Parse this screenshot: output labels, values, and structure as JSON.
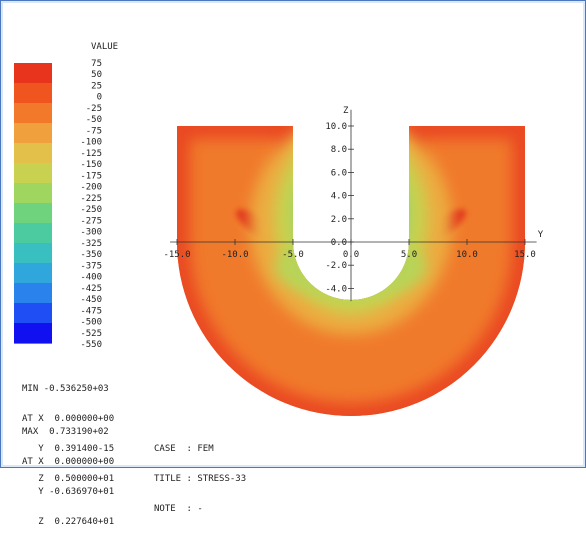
{
  "chart_data": {
    "type": "heatmap",
    "title": "",
    "colorbar": {
      "title": "VALUE",
      "ticks": [
        75,
        50,
        25,
        0,
        -25,
        -50,
        -75,
        -100,
        -125,
        -150,
        -175,
        -200,
        -225,
        -250,
        -275,
        -300,
        -325,
        -350,
        -375,
        -400,
        -425,
        -450,
        -475,
        -500,
        -525,
        -550
      ],
      "colors_top_to_bottom": [
        "#e8341c",
        "#f0551f",
        "#f2782a",
        "#f0a03c",
        "#e2c04a",
        "#c8d250",
        "#9ed660",
        "#6fd27c",
        "#4ccba0",
        "#3abfc0",
        "#2fa6dc",
        "#2a82ec",
        "#1f4ef4",
        "#1010f0"
      ]
    },
    "y_axis": {
      "label": "Y",
      "ticks": [
        "-15.0",
        "-10.0",
        "-5.0",
        "0.0",
        "5.0",
        "10.0",
        "15.0"
      ],
      "range": [
        -15,
        15
      ]
    },
    "z_axis": {
      "label": "Z",
      "ticks": [
        "10.0",
        "8.0",
        "6.0",
        "4.0",
        "2.0",
        "0.0",
        "-2.0",
        "-4.0"
      ],
      "range": [
        -5,
        10
      ]
    },
    "domain": {
      "inner_radius": 5,
      "outer_radius": 15,
      "center": [
        0,
        0
      ]
    },
    "min": {
      "label": "MIN",
      "value": "-0.536250+03",
      "at_label": "AT X",
      "x": "0.000000+00",
      "y": "0.391400-15",
      "z": "0.500000+01"
    },
    "max": {
      "label": "MAX",
      "value": "0.733190+02",
      "at_label": "AT X",
      "x": "0.000000+00",
      "y": "-0.636970+01",
      "z": "0.227640+01"
    },
    "case": {
      "case_label": "CASE",
      "case_value": "FEM",
      "title_label": "TITLE",
      "title_value": "STRESS-33",
      "note_label": "NOTE",
      "note_value": "-"
    }
  }
}
